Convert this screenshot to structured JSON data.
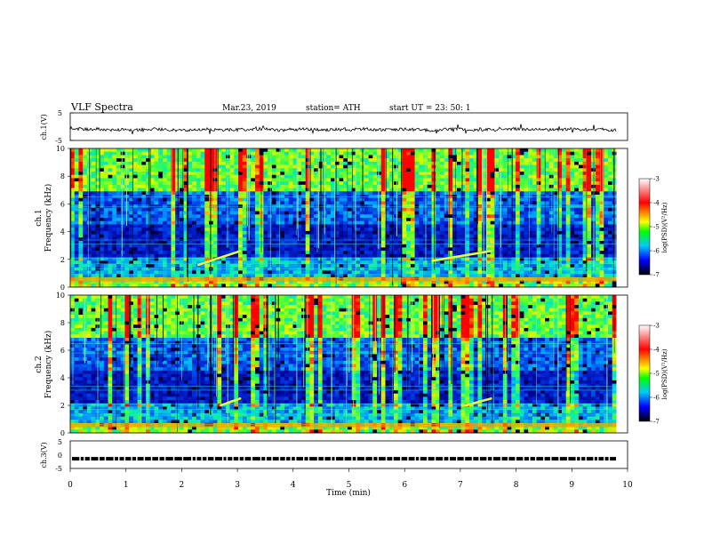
{
  "header": {
    "title": "VLF  Spectra",
    "date": "Mar.23, 2019",
    "station": "station= ATH",
    "start": "start  UT  =    23: 50: 1"
  },
  "colorbar": {
    "label": "log(PSD)(V²/Hz)",
    "ticks": [
      "-3",
      "-4",
      "-5",
      "-6",
      "-7"
    ],
    "colors": [
      "#ffffff",
      "#ff0000",
      "#ffff00",
      "#00ff00",
      "#00c8ff",
      "#0000ff",
      "#000000"
    ]
  },
  "chart_data": [
    {
      "type": "line",
      "panel": "ch1-voltage",
      "ylabel": "ch.1(V)",
      "ylim": [
        -5,
        5
      ],
      "y_ticks": [
        "5",
        "-5"
      ],
      "xlim": [
        0,
        10
      ],
      "series": [
        {
          "x": [
            0,
            0.25,
            0.5,
            0.75,
            1.0,
            1.25,
            1.5,
            1.75,
            2.0,
            2.25,
            2.5,
            2.75,
            3.0,
            3.25,
            3.5,
            3.75,
            4.0,
            4.25,
            4.5,
            4.75,
            5.0,
            5.25,
            5.5,
            5.75,
            6.0,
            6.25,
            6.5,
            6.75,
            7.0,
            7.25,
            7.5,
            7.75,
            8.0,
            8.25,
            8.5,
            8.75,
            9.0,
            9.25,
            9.5,
            9.8
          ],
          "values": [
            -0.6,
            -1.0,
            -0.9,
            -1.1,
            -1.0,
            -1.3,
            -0.8,
            -1.1,
            -1.4,
            -1.0,
            -0.9,
            -1.2,
            -1.0,
            -1.1,
            -0.9,
            -1.3,
            -1.0,
            -0.9,
            -1.2,
            -1.0,
            -1.1,
            -0.8,
            -1.2,
            -1.0,
            -0.9,
            -1.1,
            -1.3,
            -1.0,
            -0.9,
            -1.2,
            -1.0,
            -1.1,
            -0.8,
            -1.0,
            -1.2,
            -1.0,
            -0.9,
            -1.1,
            -1.0,
            -1.3
          ]
        }
      ]
    },
    {
      "type": "heatmap",
      "panel": "ch1-spectrogram",
      "ylabel": "ch.1\nFrequency (kHz)",
      "ylim": [
        0,
        10
      ],
      "y_ticks": [
        "0",
        "2",
        "4",
        "6",
        "8",
        "10"
      ],
      "xlim": [
        0,
        10
      ],
      "colorbar_range": [
        -7,
        -3
      ],
      "events": [
        {
          "name": "rising tone",
          "t_start": 2.3,
          "t_end": 3.05,
          "f_start": 1.6,
          "f_end": 2.6
        },
        {
          "name": "rising tone",
          "t_start": 6.5,
          "t_end": 7.55,
          "f_start": 1.9,
          "f_end": 2.6
        }
      ]
    },
    {
      "type": "heatmap",
      "panel": "ch2-spectrogram",
      "ylabel": "ch.2\nFrequency (kHz)",
      "ylim": [
        0,
        10
      ],
      "y_ticks": [
        "0",
        "2",
        "4",
        "6",
        "8",
        "10"
      ],
      "xlim": [
        0,
        10
      ],
      "colorbar_range": [
        -7,
        -3
      ],
      "events": [
        {
          "name": "rising tone",
          "t_start": 2.7,
          "t_end": 3.05,
          "f_start": 2.0,
          "f_end": 2.5
        },
        {
          "name": "rising tone",
          "t_start": 7.1,
          "t_end": 7.55,
          "f_start": 2.0,
          "f_end": 2.5
        }
      ]
    },
    {
      "type": "line",
      "panel": "ch3-voltage",
      "ylabel": "ch.3(V)",
      "ylim": [
        -5,
        5
      ],
      "y_ticks": [
        "5",
        "0",
        "-5"
      ],
      "xlim": [
        0,
        10
      ],
      "xlabel": "Time  (min)",
      "x_ticks": [
        "0",
        "1",
        "2",
        "3",
        "4",
        "5",
        "6",
        "7",
        "8",
        "9",
        "10"
      ],
      "series": [
        {
          "x": [
            0,
            9.8
          ],
          "values": [
            -1.5,
            -1.5
          ]
        }
      ]
    }
  ]
}
